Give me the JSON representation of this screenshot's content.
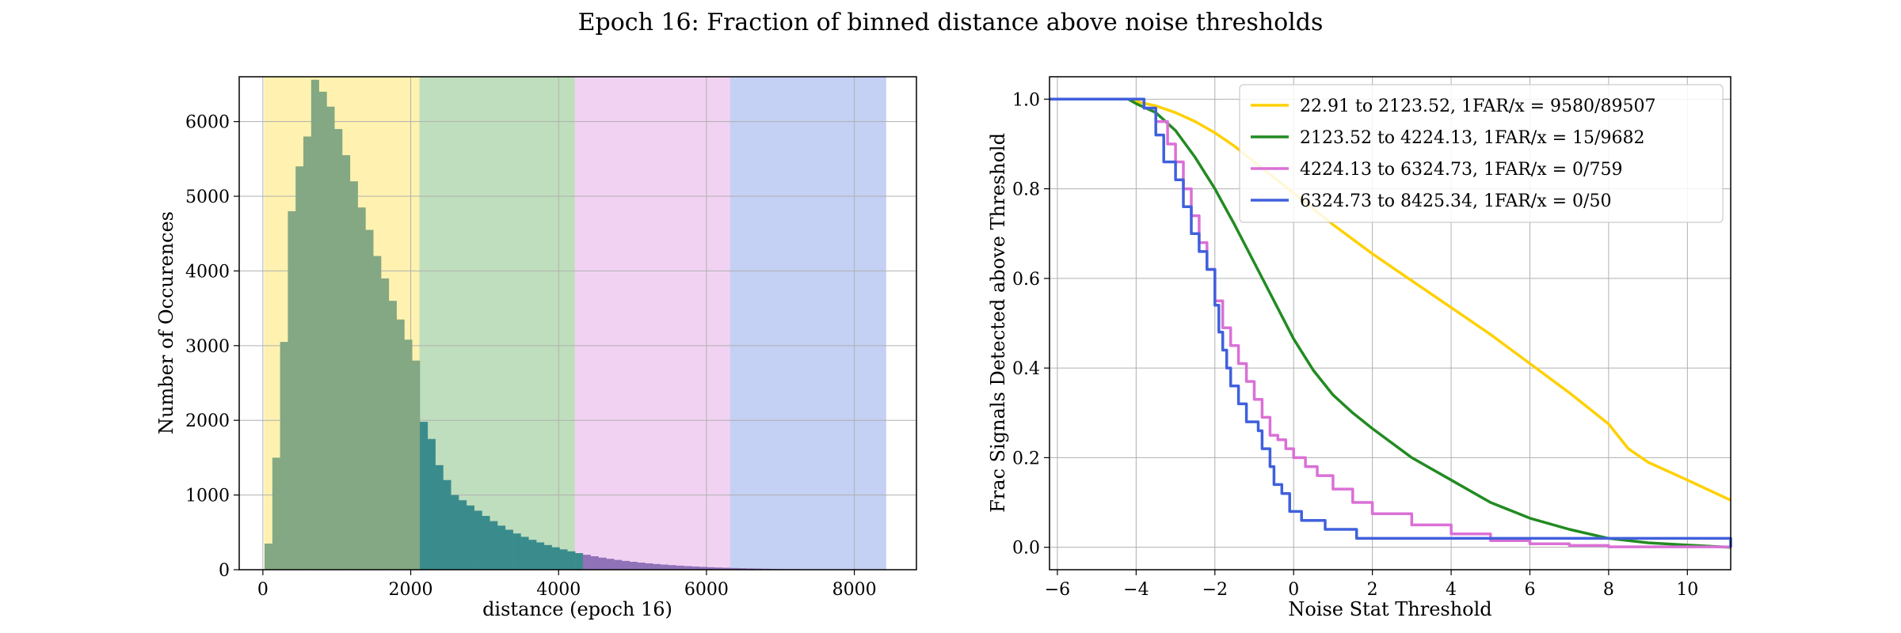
{
  "figure": {
    "suptitle": "Epoch 16: Fraction of binned distance above noise thresholds"
  },
  "chart_data": [
    {
      "type": "bar",
      "subtype": "histogram",
      "title": "",
      "xlabel": "distance (epoch 16)",
      "ylabel": "Number of Occurences",
      "xlim": [
        -320,
        8840
      ],
      "ylim": [
        0,
        6600
      ],
      "xticks": [
        0,
        2000,
        4000,
        6000,
        8000
      ],
      "yticks": [
        0,
        1000,
        2000,
        3000,
        4000,
        5000,
        6000
      ],
      "grid": true,
      "bands": [
        {
          "from": 22.91,
          "to": 2123.52,
          "color": "#fff2b0"
        },
        {
          "from": 2123.52,
          "to": 4224.13,
          "color": "#bfdebd"
        },
        {
          "from": 4224.13,
          "to": 6324.73,
          "color": "#f2d2f2"
        },
        {
          "from": 6324.73,
          "to": 8425.34,
          "color": "#c4d0f4"
        }
      ],
      "bar_colors": {
        "first_bin": "#83a883",
        "other_bins": "#3a8c8c",
        "far_bins": "#8f72b8"
      },
      "bin_width": 105,
      "bin_start": 22.91,
      "values": [
        350,
        1500,
        3050,
        4800,
        5400,
        5800,
        6560,
        6400,
        6200,
        5900,
        5550,
        5200,
        4850,
        4550,
        4200,
        3900,
        3600,
        3350,
        3080,
        2800,
        1980,
        1750,
        1400,
        1200,
        1000,
        930,
        860,
        790,
        720,
        650,
        590,
        535,
        485,
        440,
        400,
        365,
        330,
        300,
        272,
        246,
        222,
        200,
        180,
        162,
        146,
        131,
        118,
        106,
        95,
        85,
        76,
        68,
        61,
        54,
        48,
        43,
        38,
        33,
        29,
        26,
        23,
        20,
        17,
        15,
        13,
        11,
        9,
        8,
        7,
        6
      ]
    },
    {
      "type": "line",
      "subtype": "step",
      "title": "",
      "xlabel": "Noise Stat Threshold",
      "ylabel": "Frac Signals Detected above Threshold",
      "xlim": [
        -6.2,
        11.1
      ],
      "ylim": [
        -0.05,
        1.05
      ],
      "xticks": [
        -6,
        -4,
        -2,
        0,
        2,
        4,
        6,
        8,
        10
      ],
      "yticks": [
        0.0,
        0.2,
        0.4,
        0.6,
        0.8,
        1.0
      ],
      "grid": true,
      "legend": "top-right",
      "series": [
        {
          "name": "22.91 to 2123.52, 1FAR/x = 9580/89507",
          "color": "#ffd000",
          "x": [
            -6.2,
            -4.2,
            -4.0,
            -3.5,
            -3.0,
            -2.5,
            -2.0,
            -1.5,
            -1.0,
            -0.5,
            0.0,
            0.5,
            1.0,
            2.0,
            3.0,
            4.0,
            5.0,
            6.0,
            7.0,
            8.0,
            8.5,
            9.0,
            10.0,
            11.1
          ],
          "y": [
            1.0,
            1.0,
            0.995,
            0.985,
            0.97,
            0.95,
            0.925,
            0.895,
            0.86,
            0.825,
            0.79,
            0.755,
            0.72,
            0.655,
            0.595,
            0.535,
            0.475,
            0.41,
            0.345,
            0.275,
            0.22,
            0.19,
            0.15,
            0.105
          ]
        },
        {
          "name": "2123.52 to 4224.13, 1FAR/x = 15/9682",
          "color": "#228b22",
          "x": [
            -6.2,
            -4.2,
            -4.0,
            -3.5,
            -3.0,
            -2.5,
            -2.0,
            -1.5,
            -1.0,
            -0.5,
            0.0,
            0.5,
            1.0,
            1.5,
            2.0,
            3.0,
            4.0,
            5.0,
            6.0,
            7.0,
            8.0,
            9.0,
            10.0,
            11.1
          ],
          "y": [
            1.0,
            1.0,
            0.99,
            0.97,
            0.93,
            0.87,
            0.8,
            0.72,
            0.635,
            0.55,
            0.465,
            0.395,
            0.34,
            0.3,
            0.265,
            0.2,
            0.15,
            0.1,
            0.065,
            0.04,
            0.02,
            0.01,
            0.005,
            0.0
          ]
        },
        {
          "name": "4224.13 to 6324.73, 1FAR/x = 0/759",
          "color": "#da70d6",
          "x": [
            -6.2,
            -4.1,
            -3.8,
            -3.5,
            -3.2,
            -3.0,
            -2.8,
            -2.6,
            -2.4,
            -2.2,
            -2.0,
            -1.8,
            -1.6,
            -1.4,
            -1.2,
            -1.0,
            -0.8,
            -0.6,
            -0.4,
            -0.2,
            0.0,
            0.3,
            0.6,
            1.0,
            1.5,
            2.0,
            3.0,
            4.0,
            5.0,
            6.0,
            7.0,
            8.0,
            11.1
          ],
          "y": [
            1.0,
            1.0,
            0.98,
            0.95,
            0.9,
            0.86,
            0.8,
            0.74,
            0.68,
            0.62,
            0.55,
            0.49,
            0.45,
            0.41,
            0.37,
            0.33,
            0.29,
            0.25,
            0.24,
            0.22,
            0.2,
            0.18,
            0.16,
            0.13,
            0.1,
            0.075,
            0.05,
            0.03,
            0.015,
            0.008,
            0.004,
            0.001,
            0.0
          ]
        },
        {
          "name": "6324.73 to 8425.34, 1FAR/x = 0/50",
          "color": "#4060dc",
          "x": [
            -6.2,
            -4.1,
            -3.8,
            -3.5,
            -3.3,
            -3.0,
            -2.8,
            -2.6,
            -2.4,
            -2.2,
            -2.0,
            -1.9,
            -1.8,
            -1.7,
            -1.6,
            -1.4,
            -1.2,
            -0.9,
            -0.8,
            -0.6,
            -0.5,
            -0.3,
            -0.1,
            0.2,
            0.8,
            1.6,
            11.1
          ],
          "y": [
            1.0,
            1.0,
            0.98,
            0.92,
            0.86,
            0.82,
            0.76,
            0.7,
            0.66,
            0.62,
            0.54,
            0.48,
            0.44,
            0.4,
            0.36,
            0.32,
            0.28,
            0.26,
            0.22,
            0.18,
            0.14,
            0.12,
            0.08,
            0.06,
            0.04,
            0.02,
            0.0
          ]
        }
      ]
    }
  ]
}
